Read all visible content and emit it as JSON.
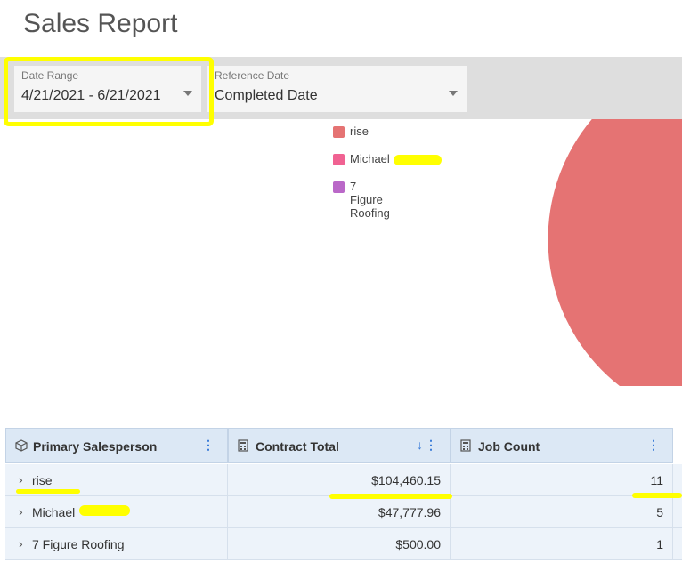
{
  "page": {
    "title": "Sales Report"
  },
  "filters": {
    "date_range": {
      "label": "Date Range",
      "value": "4/21/2021 - 6/21/2021"
    },
    "reference_date": {
      "label": "Reference Date",
      "value": "Completed Date"
    }
  },
  "chart_data": {
    "type": "pie",
    "labels": [
      "rise",
      "Michael",
      "7 Figure Roofing"
    ],
    "values": [
      104460.15,
      47777.96,
      500.0
    ],
    "colors": [
      "#e57373",
      "#f06292",
      "#ba68c8"
    ]
  },
  "legend": [
    {
      "label": "rise",
      "color": "#e57373"
    },
    {
      "label": "Michael",
      "color": "#f06292"
    },
    {
      "label": "7 Figure Roofing",
      "color": "#ba68c8"
    }
  ],
  "table": {
    "columns": [
      {
        "label": "Primary Salesperson",
        "icon": "cube-icon"
      },
      {
        "label": "Contract Total",
        "icon": "calculator-icon",
        "sorted": "desc"
      },
      {
        "label": "Job Count",
        "icon": "calculator-icon"
      }
    ],
    "rows": [
      {
        "name": "rise",
        "contract_total": "$104,460.15",
        "job_count": "11"
      },
      {
        "name": "Michael",
        "contract_total": "$47,777.96",
        "job_count": "5"
      },
      {
        "name": "7 Figure Roofing",
        "contract_total": "$500.00",
        "job_count": "1"
      }
    ]
  },
  "annotation_color": "#ffff00"
}
